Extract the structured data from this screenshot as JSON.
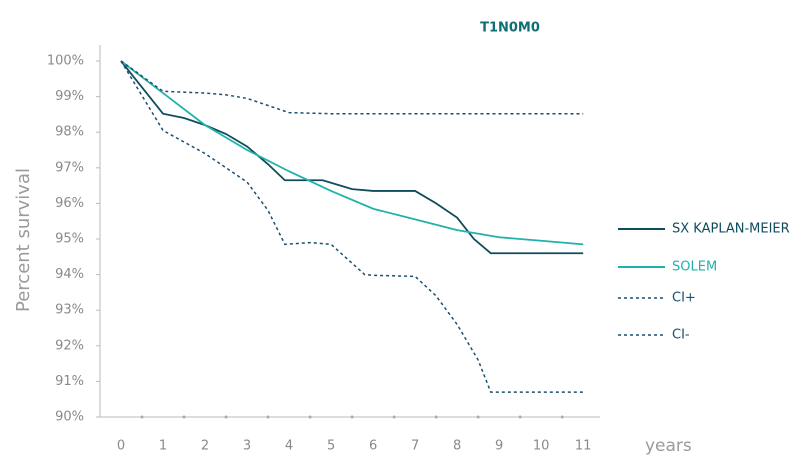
{
  "chart_data": {
    "type": "line",
    "title": "T1N0M0",
    "ylabel": "Percent survival",
    "xlabel": "years",
    "xlim": [
      -0.5,
      11.4
    ],
    "ylim": [
      90,
      100.45
    ],
    "xticks": [
      0,
      1,
      2,
      3,
      4,
      5,
      6,
      7,
      8,
      9,
      10,
      11
    ],
    "yticks": [
      {
        "value": 100,
        "label": "100%"
      },
      {
        "value": 99,
        "label": "99%"
      },
      {
        "value": 98,
        "label": "98%"
      },
      {
        "value": 97,
        "label": "97%"
      },
      {
        "value": 96,
        "label": "96%"
      },
      {
        "value": 95,
        "label": "95%"
      },
      {
        "value": 94,
        "label": "94%"
      },
      {
        "value": 93,
        "label": "93%"
      },
      {
        "value": 92,
        "label": "92%"
      },
      {
        "value": 91,
        "label": "91%"
      },
      {
        "value": 90,
        "label": "90%"
      }
    ],
    "legend": "right",
    "series": [
      {
        "name": "SX KAPLAN-MEIER",
        "color": "#0f4c5c",
        "dashed": false,
        "x": [
          0,
          1,
          1.5,
          2,
          2.5,
          3,
          3.5,
          3.9,
          4.8,
          5.5,
          6,
          7,
          7.5,
          8,
          8.4,
          8.8,
          11
        ],
        "values": [
          100,
          98.52,
          98.4,
          98.2,
          97.95,
          97.6,
          97.1,
          96.65,
          96.65,
          96.4,
          96.35,
          96.35,
          96.0,
          95.6,
          95.0,
          94.6,
          94.6
        ]
      },
      {
        "name": "SOLEM",
        "color": "#20b2aa",
        "dashed": false,
        "x": [
          0,
          1,
          2,
          3,
          4,
          5,
          6,
          7,
          8,
          9,
          10,
          11
        ],
        "values": [
          100,
          99.1,
          98.2,
          97.5,
          96.9,
          96.35,
          95.85,
          95.55,
          95.25,
          95.05,
          94.95,
          94.85
        ]
      },
      {
        "name": "CI+",
        "color": "#1a4f6e",
        "dashed": true,
        "x": [
          0,
          1,
          2,
          2.5,
          3,
          3.5,
          4,
          5,
          11
        ],
        "values": [
          100,
          99.15,
          99.1,
          99.05,
          98.95,
          98.75,
          98.55,
          98.52,
          98.52
        ]
      },
      {
        "name": "CI-",
        "color": "#1a4f6e",
        "dashed": true,
        "x": [
          0,
          1,
          2,
          3,
          3.5,
          3.9,
          4.5,
          5,
          5.8,
          6,
          7,
          7.5,
          8,
          8.5,
          8.8,
          11
        ],
        "values": [
          100,
          98.05,
          97.4,
          96.6,
          95.8,
          94.85,
          94.9,
          94.85,
          94.0,
          93.98,
          93.95,
          93.4,
          92.6,
          91.6,
          90.7,
          90.7
        ]
      }
    ]
  }
}
